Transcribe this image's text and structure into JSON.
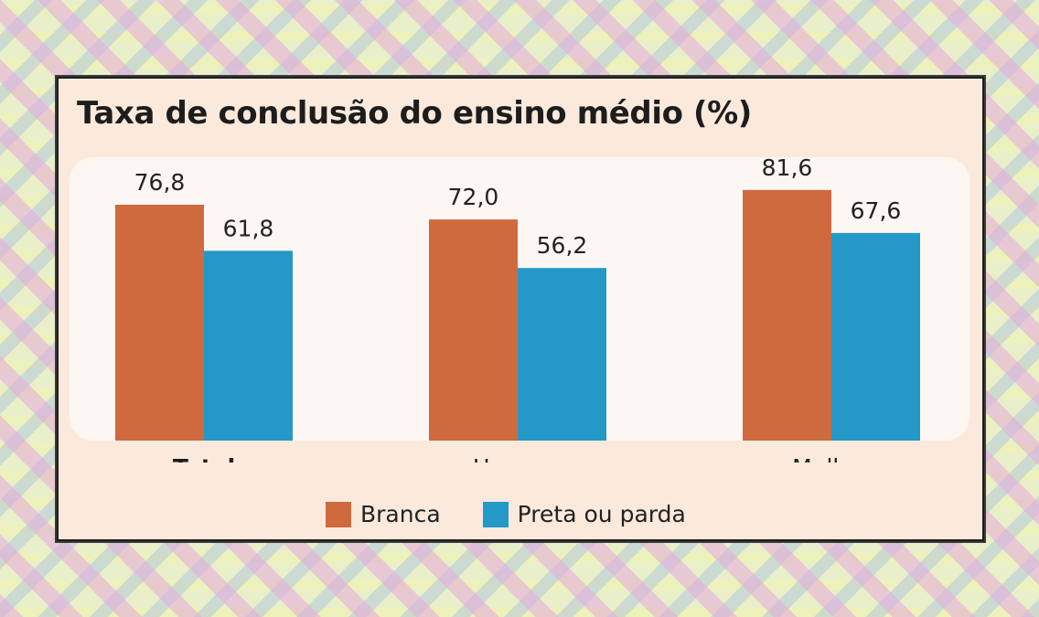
{
  "chart_data": {
    "type": "bar",
    "title": "Taxa de conclusão do ensino médio (%)",
    "categories": [
      "Total",
      "Homem",
      "Mulher"
    ],
    "category_bold": [
      true,
      false,
      false
    ],
    "series": [
      {
        "name": "Branca",
        "values": [
          76.8,
          72.0,
          81.6
        ],
        "labels": [
          "76,8",
          "72,0",
          "81,6"
        ],
        "color": "#cf6a3e"
      },
      {
        "name": "Preta ou parda",
        "values": [
          61.8,
          56.2,
          67.6
        ],
        "labels": [
          "61,8",
          "56,2",
          "67,6"
        ],
        "color": "#2499c7"
      }
    ],
    "ylim": [
      0,
      100
    ],
    "legend": "bottom",
    "grid": false
  }
}
